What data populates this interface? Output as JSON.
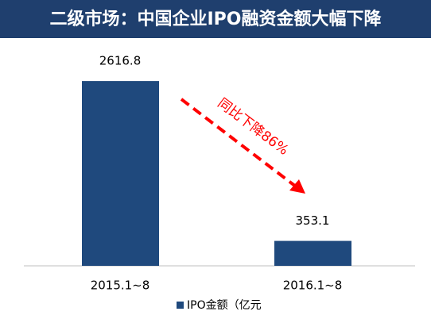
{
  "chart_data": {
    "type": "bar",
    "title": "二级市场：中国企业IPO融资金额大幅下降",
    "categories": [
      "2015.1~8",
      "2016.1~8"
    ],
    "series": [
      {
        "name": "IPO金额（亿元",
        "color": "#1f497d",
        "values": [
          2616.8,
          353.1
        ]
      }
    ],
    "ylim": [
      0,
      3000
    ],
    "annotation": "同比下降86%"
  }
}
